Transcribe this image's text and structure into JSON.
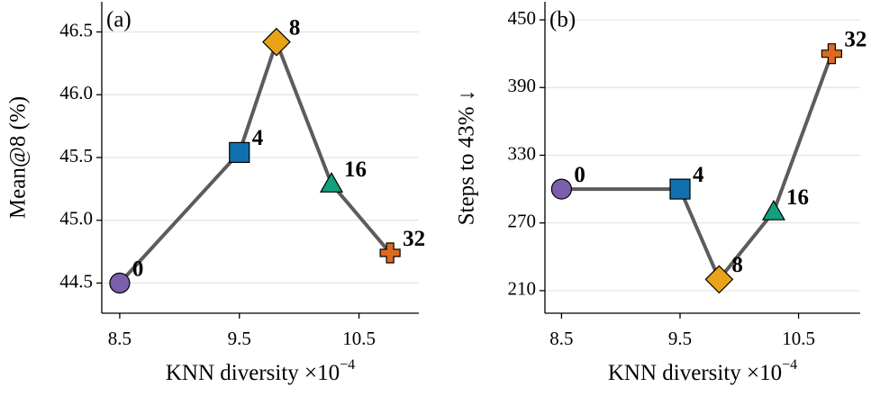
{
  "chart_data": [
    {
      "type": "line",
      "panel_label": "(a)",
      "ylabel": "Mean@8 (%)",
      "xlabel": "KNN diversity ×10",
      "x_exponent": "−4",
      "x": [
        8.5,
        9.5,
        9.81,
        10.27,
        10.76
      ],
      "values": [
        44.5,
        45.54,
        46.42,
        45.29,
        44.74
      ],
      "point_labels": [
        "0",
        "4",
        "8",
        "16",
        "32"
      ],
      "markers": [
        "circle",
        "square",
        "diamond",
        "triangle",
        "plus"
      ],
      "colors": [
        "#7a5fab",
        "#1070b0",
        "#e8a318",
        "#14a07c",
        "#dc6a1e"
      ],
      "line_color": "#5c5c5c",
      "xlim": [
        8.35,
        11.0
      ],
      "xticks": [
        8.5,
        9.5,
        10.5
      ],
      "ylim": [
        44.26,
        46.74
      ],
      "yticks": [
        44.5,
        {
          "value": 45.0,
          "label": "45.0"
        },
        45.5,
        {
          "value": 46.0,
          "label": "46.0"
        },
        46.5
      ],
      "grid": true
    },
    {
      "type": "line",
      "panel_label": "(b)",
      "ylabel": "Steps to 43% ↓",
      "xlabel": "KNN diversity ×10",
      "x_exponent": "−4",
      "x": [
        8.5,
        9.5,
        9.83,
        10.29,
        10.78
      ],
      "values": [
        300,
        300,
        220,
        280,
        420
      ],
      "point_labels": [
        "0",
        "4",
        "8",
        "16",
        "32"
      ],
      "markers": [
        "circle",
        "square",
        "diamond",
        "triangle",
        "plus"
      ],
      "colors": [
        "#7a5fab",
        "#1070b0",
        "#e8a318",
        "#14a07c",
        "#dc6a1e"
      ],
      "line_color": "#5c5c5c",
      "xlim": [
        8.36,
        11.02
      ],
      "xticks": [
        8.5,
        9.5,
        10.5
      ],
      "ylim": [
        190,
        466
      ],
      "yticks": [
        210,
        270,
        330,
        390,
        450
      ],
      "grid": true
    }
  ]
}
